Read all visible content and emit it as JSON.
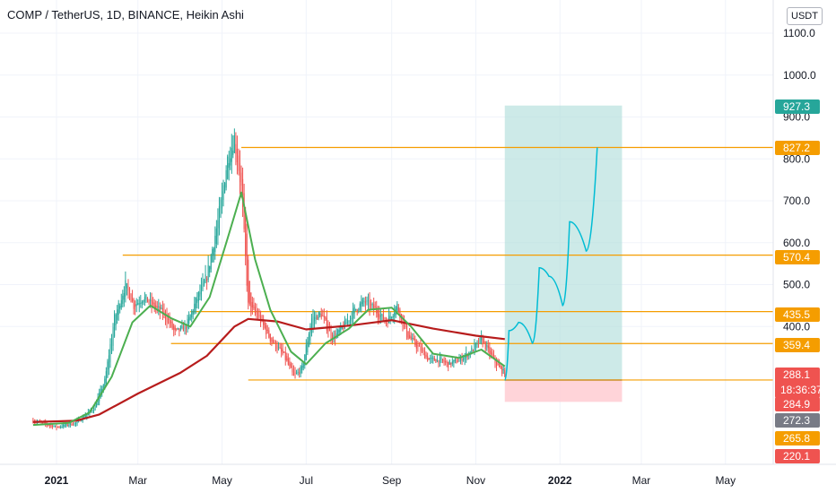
{
  "header": {
    "title": "COMP / TetherUS, 1D, BINANCE, Heikin Ashi",
    "currency_button": "USDT"
  },
  "colors": {
    "up": "#26a69a",
    "down": "#ef5350",
    "ma_fast": "#4caf50",
    "ma_slow": "#b71c1c",
    "level": "#f59d00",
    "projection": "#00bcd4",
    "target_zone": "#b2dfdb",
    "stop_zone": "#ffcdd2"
  },
  "chart_data": {
    "type": "candlestick",
    "symbol": "COMP / TetherUS",
    "interval": "1D",
    "exchange": "BINANCE",
    "style": "Heikin Ashi",
    "y_ticks": [
      1100.0,
      1000.0,
      900.0,
      800.0,
      700.0,
      600.0,
      500.0,
      400.0
    ],
    "y_tick_labels": [
      "1100.0",
      "1000.0",
      "900.0",
      "800.0",
      "700.0",
      "600.0",
      "500.0",
      "400.0"
    ],
    "x_ticks": [
      {
        "date": "2021-01-01",
        "label": "2021",
        "bold": true
      },
      {
        "date": "2021-03-01",
        "label": "Mar",
        "bold": false
      },
      {
        "date": "2021-05-01",
        "label": "May",
        "bold": false
      },
      {
        "date": "2021-07-01",
        "label": "Jul",
        "bold": false
      },
      {
        "date": "2021-09-01",
        "label": "Sep",
        "bold": false
      },
      {
        "date": "2021-11-01",
        "label": "Nov",
        "bold": false
      },
      {
        "date": "2022-01-01",
        "label": "2022",
        "bold": true
      },
      {
        "date": "2022-03-01",
        "label": "Mar",
        "bold": false
      },
      {
        "date": "2022-05-01",
        "label": "May",
        "bold": false
      }
    ],
    "price_close_path": [
      [
        "2020-12-15",
        175
      ],
      [
        "2021-01-01",
        160
      ],
      [
        "2021-01-15",
        170
      ],
      [
        "2021-01-28",
        205
      ],
      [
        "2021-02-05",
        270
      ],
      [
        "2021-02-12",
        420
      ],
      [
        "2021-02-20",
        500
      ],
      [
        "2021-02-26",
        450
      ],
      [
        "2021-03-05",
        470
      ],
      [
        "2021-03-12",
        450
      ],
      [
        "2021-03-20",
        430
      ],
      [
        "2021-03-28",
        385
      ],
      [
        "2021-04-05",
        400
      ],
      [
        "2021-04-12",
        460
      ],
      [
        "2021-04-20",
        520
      ],
      [
        "2021-04-28",
        650
      ],
      [
        "2021-05-05",
        800
      ],
      [
        "2021-05-10",
        850
      ],
      [
        "2021-05-15",
        730
      ],
      [
        "2021-05-20",
        450
      ],
      [
        "2021-05-28",
        420
      ],
      [
        "2021-06-05",
        370
      ],
      [
        "2021-06-15",
        330
      ],
      [
        "2021-06-22",
        280
      ],
      [
        "2021-06-28",
        300
      ],
      [
        "2021-07-05",
        420
      ],
      [
        "2021-07-12",
        430
      ],
      [
        "2021-07-20",
        370
      ],
      [
        "2021-07-28",
        400
      ],
      [
        "2021-08-05",
        440
      ],
      [
        "2021-08-12",
        460
      ],
      [
        "2021-08-20",
        440
      ],
      [
        "2021-08-28",
        410
      ],
      [
        "2021-09-05",
        450
      ],
      [
        "2021-09-12",
        380
      ],
      [
        "2021-09-20",
        350
      ],
      [
        "2021-09-28",
        320
      ],
      [
        "2021-10-05",
        320
      ],
      [
        "2021-10-12",
        310
      ],
      [
        "2021-10-20",
        320
      ],
      [
        "2021-10-28",
        340
      ],
      [
        "2021-11-05",
        370
      ],
      [
        "2021-11-12",
        330
      ],
      [
        "2021-11-18",
        300
      ],
      [
        "2021-11-22",
        288
      ]
    ],
    "ma_fast": [
      [
        "2020-12-15",
        165
      ],
      [
        "2021-01-10",
        170
      ],
      [
        "2021-01-25",
        195
      ],
      [
        "2021-02-10",
        280
      ],
      [
        "2021-02-25",
        410
      ],
      [
        "2021-03-10",
        450
      ],
      [
        "2021-03-25",
        420
      ],
      [
        "2021-04-08",
        400
      ],
      [
        "2021-04-22",
        470
      ],
      [
        "2021-05-05",
        610
      ],
      [
        "2021-05-15",
        720
      ],
      [
        "2021-05-25",
        560
      ],
      [
        "2021-06-05",
        440
      ],
      [
        "2021-06-20",
        340
      ],
      [
        "2021-07-01",
        310
      ],
      [
        "2021-07-15",
        360
      ],
      [
        "2021-08-01",
        395
      ],
      [
        "2021-08-15",
        440
      ],
      [
        "2021-09-01",
        445
      ],
      [
        "2021-09-15",
        400
      ],
      [
        "2021-10-01",
        335
      ],
      [
        "2021-10-20",
        325
      ],
      [
        "2021-11-05",
        345
      ],
      [
        "2021-11-22",
        305
      ]
    ],
    "ma_slow": [
      [
        "2020-12-15",
        172
      ],
      [
        "2021-01-15",
        175
      ],
      [
        "2021-02-01",
        190
      ],
      [
        "2021-03-01",
        240
      ],
      [
        "2021-04-01",
        290
      ],
      [
        "2021-04-20",
        330
      ],
      [
        "2021-05-10",
        400
      ],
      [
        "2021-05-20",
        418
      ],
      [
        "2021-06-10",
        412
      ],
      [
        "2021-07-01",
        393
      ],
      [
        "2021-08-01",
        402
      ],
      [
        "2021-09-01",
        415
      ],
      [
        "2021-10-01",
        395
      ],
      [
        "2021-11-01",
        378
      ],
      [
        "2021-11-22",
        370
      ]
    ],
    "horizontal_levels": [
      827.2,
      570.4,
      435.5,
      359.4,
      272.3
    ],
    "long_position": {
      "start": "2021-11-22",
      "end": "2022-02-15",
      "entry": 272.3,
      "target": 927.3,
      "stop": 220.1
    },
    "projection_path": [
      [
        "2021-11-22",
        272
      ],
      [
        "2021-11-25",
        390
      ],
      [
        "2021-12-02",
        410
      ],
      [
        "2021-12-12",
        360
      ],
      [
        "2021-12-17",
        540
      ],
      [
        "2021-12-24",
        520
      ],
      [
        "2022-01-03",
        450
      ],
      [
        "2022-01-08",
        650
      ],
      [
        "2022-01-20",
        580
      ],
      [
        "2022-01-28",
        827
      ]
    ],
    "price_tags": [
      {
        "value": 927.3,
        "label": "927.3",
        "color": "#26a69a"
      },
      {
        "value": 827.2,
        "label": "827.2",
        "color": "#f59d00"
      },
      {
        "value": 570.4,
        "label": "570.4",
        "color": "#f59d00"
      },
      {
        "value": 435.5,
        "label": "435.5",
        "color": "#f59d00"
      },
      {
        "value": 359.4,
        "label": "359.4",
        "color": "#f59d00"
      },
      {
        "value": 288.1,
        "label": "288.1",
        "sublabel": "18:36:37",
        "color": "#ef5350"
      },
      {
        "value": 284.9,
        "label": "284.9",
        "color": "#ef5350"
      },
      {
        "value": 272.3,
        "label": "272.3",
        "color": "#787b86"
      },
      {
        "value": 265.8,
        "label": "265.8",
        "color": "#f59d00"
      },
      {
        "value": 220.1,
        "label": "220.1",
        "color": "#ef5350"
      }
    ]
  }
}
